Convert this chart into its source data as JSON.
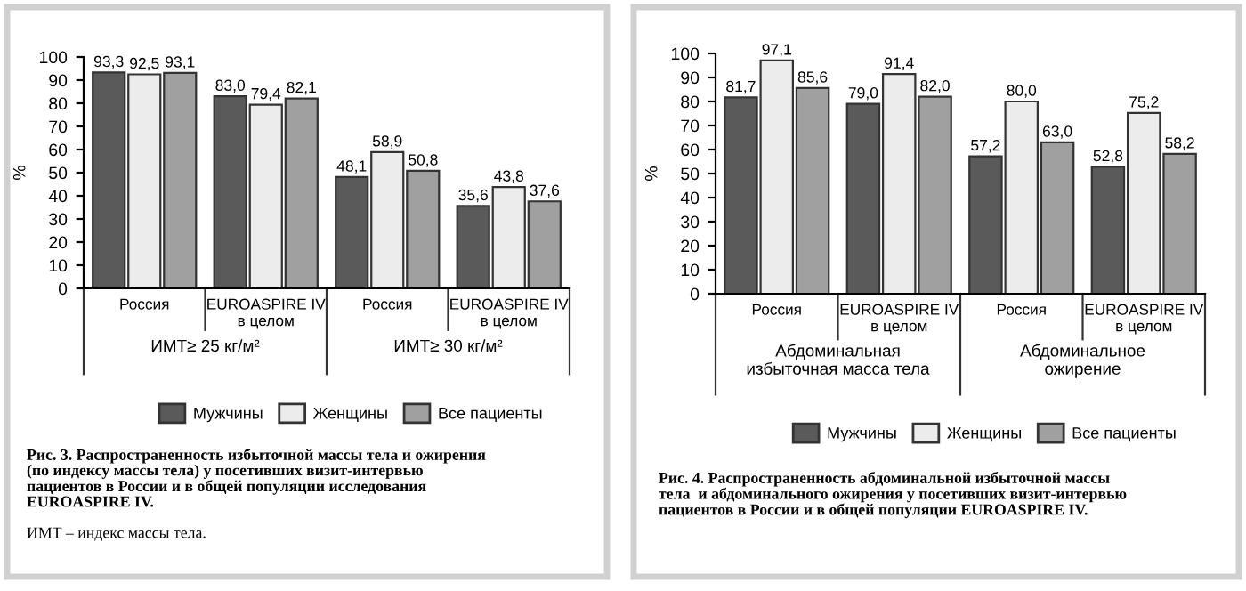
{
  "chart_data": [
    {
      "type": "bar",
      "title": "Рис. 3. Распространенность избыточной массы тела и ожирения\n(по индексу массы тела) у посетивших визит-интервью\nпациентов в России и в общей популяции исследования\nEUROASPIRE IV.",
      "ylabel": "%",
      "categories": [
        "Россия",
        "EUROASPIRE IV\nв целом",
        "Россия",
        "EUROASPIRE IV\nв целом"
      ],
      "series": [
        {
          "name": "Мужчины",
          "color": "#5a5a5a",
          "values": [
            93.3,
            83.0,
            48.1,
            35.6
          ],
          "value_labels": [
            "93,3",
            "83,0",
            "48,1",
            "35,6"
          ]
        },
        {
          "name": "Женщины",
          "color": "#ececec",
          "values": [
            92.5,
            79.4,
            58.9,
            43.8
          ],
          "value_labels": [
            "92,5",
            "79,4",
            "58,9",
            "43,8"
          ]
        },
        {
          "name": "Все пациенты",
          "color": "#a0a0a0",
          "values": [
            93.1,
            82.1,
            50.8,
            37.6
          ],
          "value_labels": [
            "93,1",
            "82,1",
            "50,8",
            "37,6"
          ]
        }
      ],
      "annotations": [
        "ИМТ≥ 25 кг/м²",
        "ИМТ≥ 30 кг/м²",
        "ИМТ – индекс массы тела."
      ],
      "ylim": [
        0,
        100
      ],
      "yticks": [
        0,
        10,
        20,
        30,
        40,
        50,
        60,
        70,
        80,
        90,
        100
      ],
      "grid": false,
      "legend": "bottom"
    },
    {
      "type": "bar",
      "title": "Рис. 4. Распространенность абдоминальной избыточной массы\nтела  и абдоминального ожирения у посетивших визит-интервью\nпациентов в России и в общей популяции EUROASPIRE IV.",
      "ylabel": "%",
      "categories": [
        "Россия",
        "EUROASPIRE IV\nв целом",
        "Россия",
        "EUROASPIRE IV\nв целом"
      ],
      "series": [
        {
          "name": "Мужчины",
          "color": "#5a5a5a",
          "values": [
            81.7,
            79.0,
            57.2,
            52.8
          ],
          "value_labels": [
            "81,7",
            "79,0",
            "57,2",
            "52,8"
          ]
        },
        {
          "name": "Женщины",
          "color": "#ececec",
          "values": [
            97.1,
            91.4,
            80.0,
            75.2
          ],
          "value_labels": [
            "97,1",
            "91,4",
            "80,0",
            "75,2"
          ]
        },
        {
          "name": "Все пациенты",
          "color": "#a0a0a0",
          "values": [
            85.6,
            82.0,
            63.0,
            58.2
          ],
          "value_labels": [
            "85,6",
            "82,0",
            "63,0",
            "58,2"
          ]
        }
      ],
      "annotations": [
        "Абдоминальная\nизбыточная масса тела",
        "Абдоминальное\nожирение"
      ],
      "ylim": [
        0,
        100
      ],
      "yticks": [
        0,
        10,
        20,
        30,
        40,
        50,
        60,
        70,
        80,
        90,
        100
      ],
      "grid": false,
      "legend": "bottom"
    }
  ]
}
